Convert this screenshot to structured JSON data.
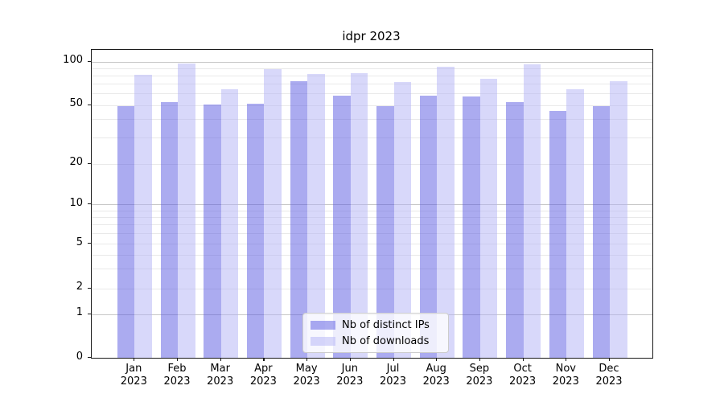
{
  "title": "idpr 2023",
  "chart_data": {
    "type": "bar",
    "title": "idpr 2023",
    "categories": [
      "Jan 2023",
      "Feb 2023",
      "Mar 2023",
      "Apr 2023",
      "May 2023",
      "Jun 2023",
      "Jul 2023",
      "Aug 2023",
      "Sep 2023",
      "Oct 2023",
      "Nov 2023",
      "Dec 2023"
    ],
    "series": [
      {
        "name": "Nb of distinct IPs",
        "hex": "#5757e2",
        "alpha": 0.5,
        "values": [
          49,
          52,
          50,
          51,
          73,
          58,
          49,
          58,
          57,
          52,
          45,
          49
        ]
      },
      {
        "name": "Nb of downloads",
        "hex": "#b2b2f5",
        "alpha": 0.5,
        "values": [
          81,
          97,
          64,
          89,
          82,
          83,
          72,
          92,
          76,
          96,
          64,
          73
        ]
      }
    ],
    "yscale": "symlog",
    "yticks": [
      0,
      1,
      2,
      5,
      10,
      20,
      50,
      100
    ],
    "ylim": [
      0,
      120
    ],
    "grid": true,
    "legend_position": "lower center inside plot"
  },
  "legend": {
    "items": [
      {
        "label": "Nb of distinct IPs",
        "hex": "#5757e2"
      },
      {
        "label": "Nb of downloads",
        "hex": "#b2b2f5"
      }
    ]
  },
  "colors": {
    "background": "#ffffff",
    "bar_distinct_ips_on_white": "#abaaf0",
    "bar_downloads_on_white": "#d8d8fa",
    "grid_major": "#c6c6c6",
    "grid_minor": "#e9e9e9",
    "axis": "#1a1a1a",
    "text": "#000000"
  }
}
